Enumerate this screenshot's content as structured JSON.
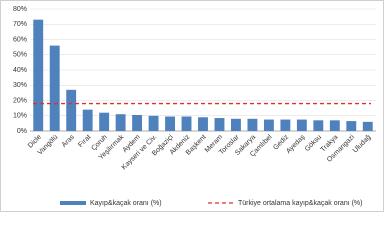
{
  "chart_data": {
    "type": "bar",
    "categories": [
      "Dicle",
      "Vangölü",
      "Aras",
      "Fırat",
      "Çoruh",
      "Yeşilırmak",
      "Aydem",
      "Kayseri ve Civ.",
      "Boğaziçi",
      "Akdeniz",
      "Başkent",
      "Meram",
      "Toroslar",
      "Sakarya",
      "Çamlıbel",
      "Gediz",
      "Ayedaş",
      "Göksu",
      "Trakya",
      "Osmangazi",
      "Uludağ"
    ],
    "series": [
      {
        "name": "Kayıp&kaçak oranı (%)",
        "color": "#4f81bd",
        "values": [
          73,
          56,
          27,
          14,
          12,
          11,
          10.5,
          10,
          9.5,
          9.5,
          9,
          8.5,
          8,
          8,
          7.5,
          7.5,
          7.5,
          7,
          7,
          6.5,
          6
        ]
      }
    ],
    "reference_line": {
      "name": "Türkiye ortalama kayıp&kaçak oranı (%)",
      "color": "#e0312b",
      "value": 18
    },
    "ylim": [
      0,
      80
    ],
    "yticks": [
      {
        "value": 0,
        "label": "0%"
      },
      {
        "value": 10,
        "label": "10%"
      },
      {
        "value": 20,
        "label": "20%"
      },
      {
        "value": 30,
        "label": "30%"
      },
      {
        "value": 40,
        "label": "40%"
      },
      {
        "value": 50,
        "label": "50%"
      },
      {
        "value": 60,
        "label": "60%"
      },
      {
        "value": 70,
        "label": "70%"
      },
      {
        "value": 80,
        "label": "80%"
      }
    ],
    "grid": true
  }
}
